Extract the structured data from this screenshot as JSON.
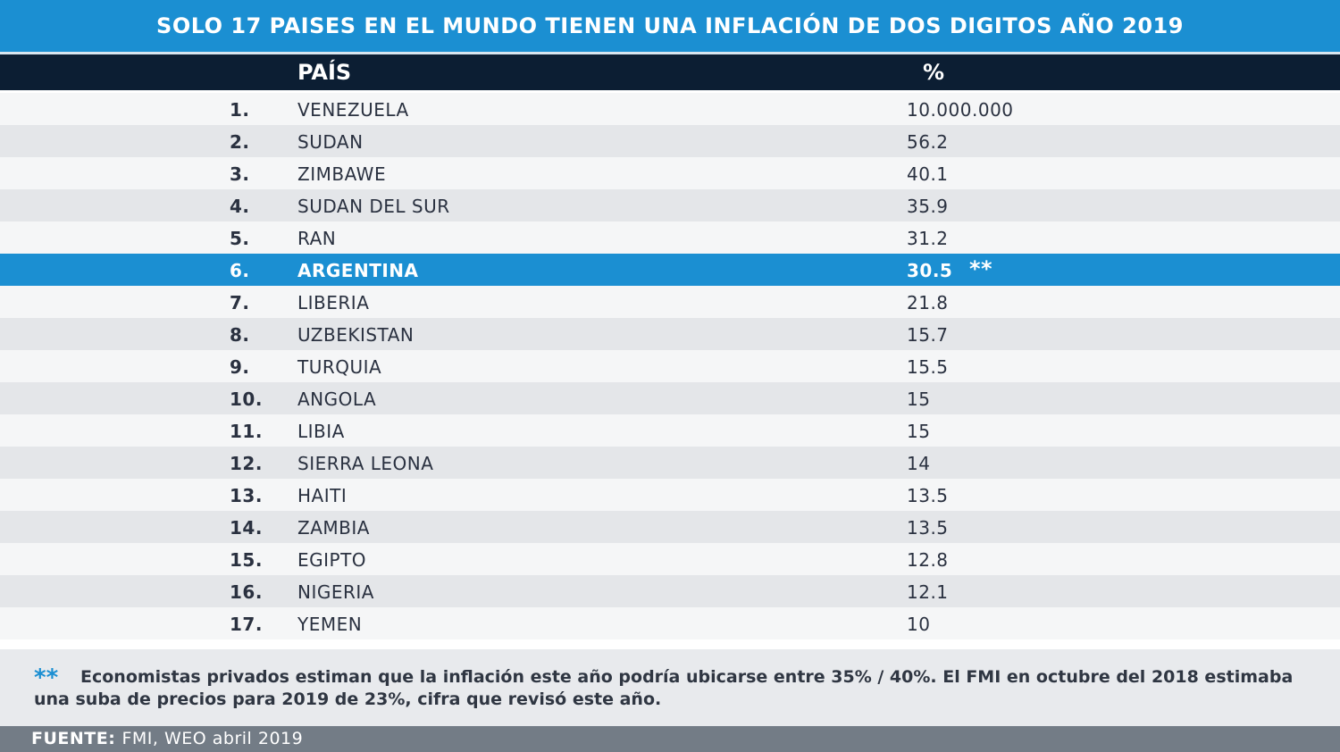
{
  "title": "SOLO 17 PAISES EN EL MUNDO TIENEN UNA INFLACIÓN DE DOS DIGITOS AÑO 2019",
  "header": {
    "country": "PAÍS",
    "percent": "%"
  },
  "rows": [
    {
      "rank": "1.",
      "country": "VENEZUELA",
      "value": "10.000.000",
      "mark": ""
    },
    {
      "rank": "2.",
      "country": "SUDAN",
      "value": "56.2",
      "mark": ""
    },
    {
      "rank": "3.",
      "country": "ZIMBAWE",
      "value": "40.1",
      "mark": ""
    },
    {
      "rank": "4.",
      "country": "SUDAN DEL SUR",
      "value": "35.9",
      "mark": ""
    },
    {
      "rank": "5.",
      "country": "RAN",
      "value": "31.2",
      "mark": ""
    },
    {
      "rank": "6.",
      "country": "ARGENTINA",
      "value": "30.5",
      "mark": "**",
      "highlight": true
    },
    {
      "rank": "7.",
      "country": "LIBERIA",
      "value": "21.8",
      "mark": ""
    },
    {
      "rank": "8.",
      "country": "UZBEKISTAN",
      "value": "15.7",
      "mark": ""
    },
    {
      "rank": "9.",
      "country": "TURQUIA",
      "value": "15.5",
      "mark": ""
    },
    {
      "rank": "10.",
      "country": "ANGOLA",
      "value": "15",
      "mark": ""
    },
    {
      "rank": "11.",
      "country": "LIBIA",
      "value": "15",
      "mark": ""
    },
    {
      "rank": "12.",
      "country": "SIERRA LEONA",
      "value": "14",
      "mark": ""
    },
    {
      "rank": "13.",
      "country": "HAITI",
      "value": "13.5",
      "mark": ""
    },
    {
      "rank": "14.",
      "country": "ZAMBIA",
      "value": "13.5",
      "mark": ""
    },
    {
      "rank": "15.",
      "country": "EGIPTO",
      "value": "12.8",
      "mark": ""
    },
    {
      "rank": "16.",
      "country": "NIGERIA",
      "value": "12.1",
      "mark": ""
    },
    {
      "rank": "17.",
      "country": "YEMEN",
      "value": "10",
      "mark": ""
    }
  ],
  "footnote": {
    "marker": "**",
    "text": "Economistas privados estiman que la inflación este año  podría ubicarse entre 35% / 40%. El FMI en octubre del 2018 estimaba una suba de precios para 2019 de 23%, cifra que revisó este año."
  },
  "source": {
    "label": "FUENTE:",
    "value": "FMI, WEO abril 2019"
  },
  "colors": {
    "accent": "#1b8fd2",
    "header_dark": "#0c1e33",
    "source_bar": "#737c86"
  }
}
